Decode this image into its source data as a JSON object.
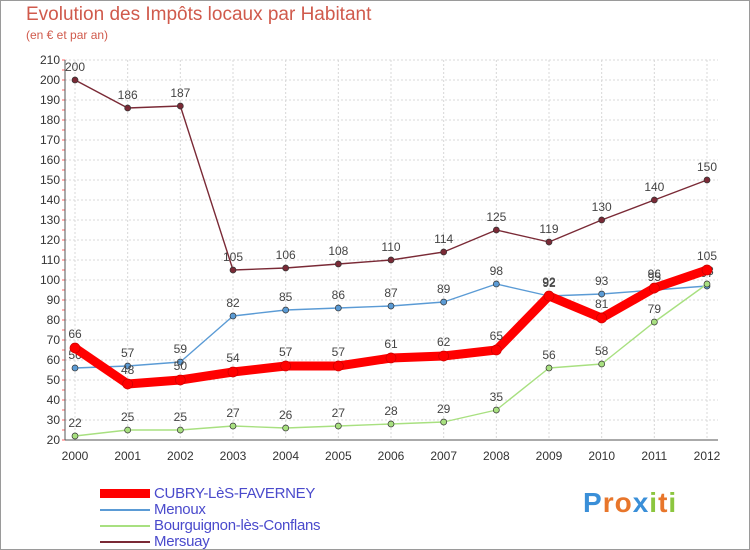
{
  "chart_data": {
    "type": "line",
    "title": "Evolution des Impôts locaux par Habitant",
    "subtitle": "(en € et par an)",
    "xlabel": "",
    "ylabel": "",
    "ylim": [
      20,
      210
    ],
    "yticks": [
      20,
      30,
      40,
      50,
      60,
      70,
      80,
      90,
      100,
      110,
      120,
      130,
      140,
      150,
      160,
      170,
      180,
      190,
      200,
      210
    ],
    "categories": [
      "2000",
      "2001",
      "2002",
      "2003",
      "2004",
      "2005",
      "2006",
      "2007",
      "2008",
      "2009",
      "2010",
      "2011",
      "2012"
    ],
    "grid": true,
    "legend_position": "bottom-left",
    "series": [
      {
        "name": "Mersuay",
        "color": "#7a2a36",
        "values": [
          200,
          186,
          187,
          105,
          106,
          108,
          110,
          114,
          125,
          119,
          130,
          140,
          150
        ]
      },
      {
        "name": "Menoux",
        "color": "#5b9bd5",
        "values": [
          56,
          57,
          59,
          82,
          85,
          86,
          87,
          89,
          98,
          92,
          93,
          95,
          97
        ]
      },
      {
        "name": "Bourguignon-lès-Conflans",
        "color": "#a8e080",
        "values": [
          22,
          25,
          25,
          27,
          26,
          27,
          28,
          29,
          35,
          56,
          58,
          79,
          98
        ]
      },
      {
        "name": "CUBRY-LèS-FAVERNEY",
        "color": "#ff0000",
        "values": [
          66,
          48,
          50,
          54,
          57,
          57,
          61,
          62,
          65,
          92,
          81,
          96,
          105
        ]
      }
    ],
    "legend": [
      "CUBRY-LèS-FAVERNEY",
      "Menoux",
      "Bourguignon-lès-Conflans",
      "Mersuay"
    ]
  },
  "brand": {
    "letters": [
      "P",
      "r",
      "o",
      "x",
      "i",
      "t",
      "i"
    ],
    "colors": [
      "#3a8fd8",
      "#e8762b",
      "#e8762b",
      "#3a8fd8",
      "#8cc63f",
      "#e8762b",
      "#8cc63f"
    ]
  }
}
